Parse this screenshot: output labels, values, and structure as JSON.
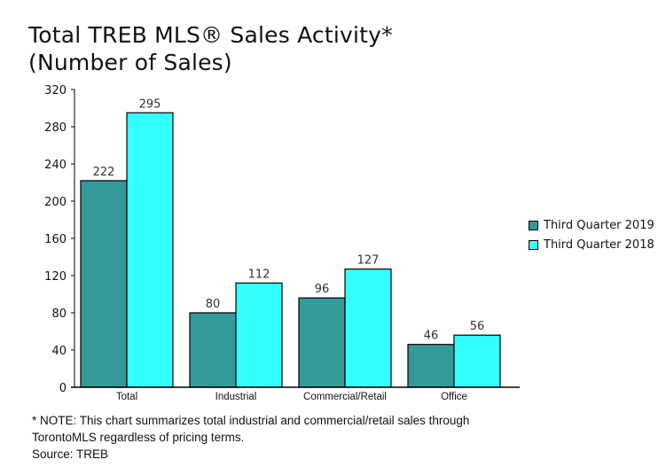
{
  "title_line1": "Total TREB MLS® Sales Activity*",
  "title_line2": "(Number of Sales)",
  "chart_data": {
    "type": "bar",
    "categories": [
      "Total",
      "Industrial",
      "Commercial/Retail",
      "Office"
    ],
    "series": [
      {
        "name": "Third Quarter 2019",
        "values": [
          222,
          80,
          96,
          46
        ],
        "color": "#339999"
      },
      {
        "name": "Third Quarter 2018",
        "values": [
          295,
          112,
          127,
          56
        ],
        "color": "#33ffff"
      }
    ],
    "ylim": [
      0,
      320
    ],
    "yticks": [
      0,
      40,
      80,
      120,
      160,
      200,
      240,
      280,
      320
    ],
    "grid": false,
    "legend_position": "right"
  },
  "footnote": {
    "line1": "* NOTE: This chart summarizes total industrial and commercial/retail sales through",
    "line2": "TorontoMLS regardless of pricing terms.",
    "line3": "Source: TREB"
  }
}
